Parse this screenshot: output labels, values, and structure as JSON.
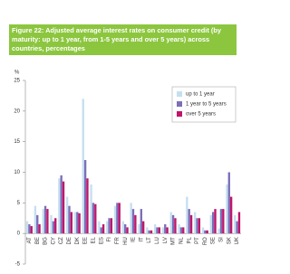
{
  "chart_data": {
    "type": "bar",
    "title": "Figure 22: Adjusted average interest rates on consumer credit (by maturity: up to 1 year, from 1-5 years and over 5 years) across countries, percentages",
    "y_label": "%",
    "categories": [
      "AT",
      "BE",
      "BG",
      "CY",
      "CZ",
      "DE",
      "DK",
      "EE",
      "EL",
      "ES",
      "FI",
      "FR",
      "HU",
      "IE",
      "IT",
      "LT",
      "LU",
      "LV",
      "MT",
      "NL",
      "PL",
      "PT",
      "RO",
      "SE",
      "SI",
      "SK",
      "UK"
    ],
    "series": [
      {
        "name": "up to 1 year",
        "color": "#c6dff0",
        "values": [
          2,
          4.5,
          4,
          3,
          9,
          6,
          3.5,
          22,
          8,
          2,
          2,
          4.5,
          2,
          5,
          1.5,
          1,
          1.5,
          1,
          3.5,
          1.5,
          6,
          3.5,
          1,
          3,
          0.8,
          8,
          3
        ]
      },
      {
        "name": "1 year to 5 years",
        "color": "#7b6fb8",
        "values": [
          1.5,
          3,
          4.5,
          2,
          9.5,
          4.5,
          3.5,
          12,
          5,
          1,
          2.5,
          5,
          1.5,
          4,
          4,
          0.5,
          1,
          1.5,
          3,
          1,
          4,
          2.5,
          0.5,
          3.5,
          4,
          10,
          2
        ]
      },
      {
        "name": "over 5 years",
        "color": "#c0156b",
        "values": [
          1.2,
          1.5,
          4,
          2.5,
          8.5,
          3.5,
          3.3,
          9,
          4.8,
          1.5,
          2.5,
          5,
          1,
          3,
          2,
          0.5,
          1,
          1,
          2.5,
          1,
          3,
          2.5,
          0.5,
          4,
          4,
          6,
          3.5
        ]
      }
    ],
    "ylim": [
      -5,
      25
    ],
    "yticks": [
      -5,
      0,
      5,
      10,
      15,
      20,
      25
    ],
    "grid": false,
    "legend": "top-right"
  }
}
